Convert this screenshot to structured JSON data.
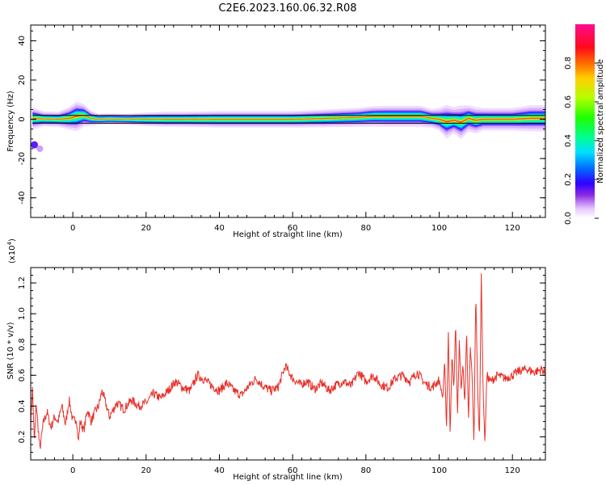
{
  "figure_title": "C2E6.2023.160.06.32.R08",
  "chart_data": [
    {
      "type": "heatmap",
      "title": "",
      "xlabel": "Height of straight line (km)",
      "ylabel": "Frequency (Hz)",
      "xlim": [
        -11.5,
        129
      ],
      "ylim": [
        -50,
        48
      ],
      "xticks": [
        0,
        20,
        40,
        60,
        80,
        100,
        120
      ],
      "yticks": [
        -40,
        -20,
        0,
        20,
        40
      ],
      "ytick_labels": [
        "-40",
        "-20",
        "0",
        "20",
        "40"
      ],
      "colorbar": {
        "label": "Normalized spectral amplitude",
        "range": [
          0,
          1
        ],
        "ticks": [
          0.0,
          0.2,
          0.4,
          0.6,
          0.8
        ],
        "tick_labels": [
          "0.0",
          "0.2",
          "0.4",
          "0.6",
          "0.8"
        ],
        "colormap": "hsv-rainbow"
      },
      "track": {
        "x": [
          -11,
          -8,
          -4,
          -1,
          1,
          3,
          5,
          7,
          10,
          15,
          20,
          25,
          30,
          40,
          50,
          60,
          70,
          78,
          82,
          86,
          90,
          95,
          98,
          100,
          102,
          104,
          106,
          108,
          110,
          112,
          115,
          120,
          125,
          129
        ],
        "center": [
          0.5,
          0.2,
          0,
          0.5,
          1.5,
          2,
          0.5,
          0,
          0.2,
          0,
          0,
          0,
          0,
          0,
          0,
          0,
          0.5,
          1,
          1.5,
          1.5,
          1.5,
          1.5,
          0.5,
          0,
          -1.2,
          -0.5,
          -1.5,
          0.5,
          -0.5,
          0,
          0,
          0,
          0.5,
          0.5
        ],
        "halfwidth": [
          3,
          2,
          2,
          3,
          4,
          3,
          2,
          1.5,
          1.5,
          1.5,
          1.8,
          2,
          2,
          2.2,
          2.2,
          2.2,
          2.4,
          2.5,
          2.7,
          2.8,
          2.8,
          2.8,
          2.5,
          3,
          4.5,
          3.5,
          4.5,
          3.5,
          3.5,
          3,
          3,
          3,
          3.5,
          3.5
        ]
      },
      "isolated_points": [
        {
          "x": -10.5,
          "y": -13,
          "amplitude": 0.25
        },
        {
          "x": -9,
          "y": -15,
          "amplitude": 0.15
        }
      ],
      "reference_lines": [
        {
          "x1": -11,
          "x2": 129,
          "y": 2
        },
        {
          "x1": -11,
          "x2": 129,
          "y": -2
        }
      ]
    },
    {
      "type": "line",
      "title": "",
      "xlabel": "Height of straight line (km)",
      "ylabel": "SNR (10 * v/v)",
      "exponent_label": "(x10",
      "exponent_power": "4",
      "exponent_close": ")",
      "xlim": [
        -11.5,
        129
      ],
      "ylim": [
        0.05,
        1.3
      ],
      "xticks": [
        0,
        20,
        40,
        60,
        80,
        100,
        120
      ],
      "yticks": [
        0.2,
        0.4,
        0.6,
        0.8,
        1.0,
        1.2
      ],
      "ytick_labels": [
        "0.2",
        "0.4",
        "0.6",
        "0.8",
        "1.0",
        "1.2"
      ],
      "series": [
        {
          "color": "#e8312a",
          "x": [
            -11.5,
            -11,
            -10.5,
            -10,
            -9,
            -8,
            -7,
            -6,
            -5,
            -4,
            -3,
            -2,
            -1,
            0,
            1,
            1.5,
            2,
            3,
            4,
            5,
            6,
            7,
            8,
            10,
            12,
            14,
            16,
            18,
            20,
            22,
            24,
            26,
            28,
            30,
            32,
            34,
            36,
            38,
            40,
            42,
            44,
            46,
            48,
            50,
            52,
            54,
            56,
            58,
            60,
            62,
            64,
            66,
            68,
            70,
            72,
            74,
            76,
            78,
            80,
            82,
            84,
            86,
            88,
            90,
            92,
            94,
            96,
            98,
            100,
            101,
            101.5,
            102,
            102.5,
            103,
            103.5,
            104,
            104.5,
            105,
            105.5,
            106,
            106.5,
            107,
            107.5,
            108,
            108.5,
            109,
            109.5,
            110,
            110.5,
            111,
            111.5,
            112,
            112.5,
            113,
            114,
            116,
            118,
            120,
            122,
            124,
            126,
            128,
            129
          ],
          "y": [
            0.28,
            0.52,
            0.15,
            0.42,
            0.12,
            0.3,
            0.36,
            0.26,
            0.33,
            0.3,
            0.4,
            0.28,
            0.44,
            0.3,
            0.32,
            0.16,
            0.3,
            0.24,
            0.38,
            0.3,
            0.36,
            0.4,
            0.5,
            0.33,
            0.42,
            0.38,
            0.44,
            0.4,
            0.42,
            0.48,
            0.45,
            0.5,
            0.56,
            0.52,
            0.5,
            0.6,
            0.57,
            0.53,
            0.5,
            0.55,
            0.5,
            0.47,
            0.53,
            0.58,
            0.53,
            0.5,
            0.52,
            0.66,
            0.58,
            0.54,
            0.56,
            0.51,
            0.55,
            0.5,
            0.54,
            0.56,
            0.53,
            0.62,
            0.56,
            0.6,
            0.54,
            0.52,
            0.58,
            0.6,
            0.56,
            0.62,
            0.55,
            0.52,
            0.57,
            0.45,
            0.7,
            0.25,
            0.88,
            0.2,
            0.75,
            0.5,
            0.95,
            0.33,
            0.82,
            0.5,
            0.68,
            0.4,
            0.9,
            0.3,
            0.78,
            0.6,
            0.15,
            1.15,
            0.5,
            0.2,
            1.26,
            0.5,
            0.15,
            0.6,
            0.56,
            0.6,
            0.58,
            0.6,
            0.63,
            0.64,
            0.62,
            0.64,
            0.61
          ]
        }
      ]
    }
  ]
}
